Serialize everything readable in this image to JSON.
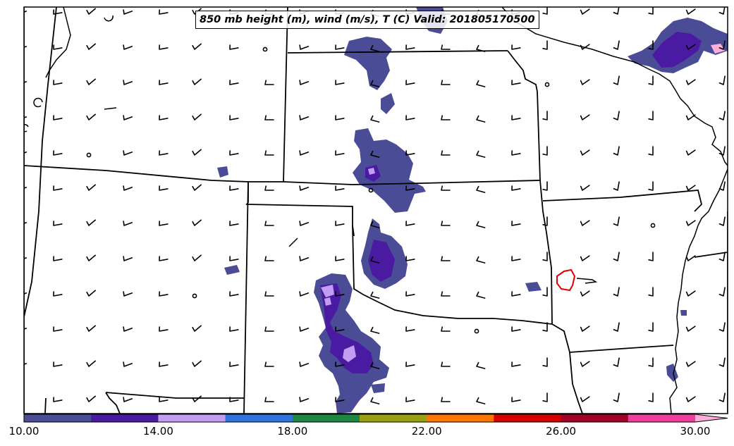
{
  "title": "850 mb height (m), wind (m/s), T (C) Valid: 201805170500",
  "colorbar": {
    "colors": [
      "#4b4c96",
      "#4a1aa3",
      "#c19ef2",
      "#2f72e0",
      "#1d8744",
      "#99a012",
      "#ff7500",
      "#d60000",
      "#a3002a",
      "#ef3f9e"
    ],
    "extend_color": "#ffadd9",
    "ticks": [
      "10.00",
      "14.00",
      "18.00",
      "22.00",
      "26.00",
      "30.00"
    ]
  }
}
